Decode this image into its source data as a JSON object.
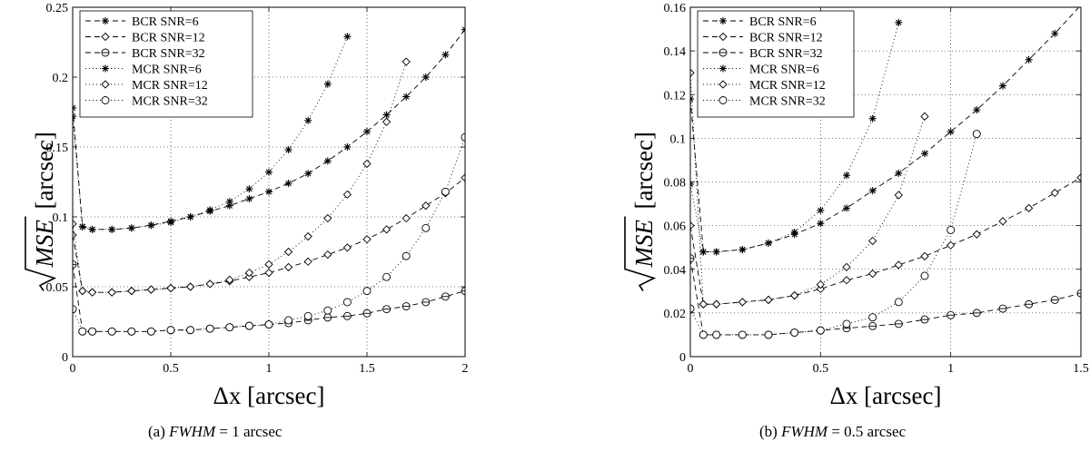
{
  "chart_data": [
    {
      "type": "line",
      "caption": {
        "label": "(a)",
        "var": "FWHM",
        "rest": "= 1 arcsec"
      },
      "xlabel": "Δx [arcsec]",
      "ylabel": "[arcsec]",
      "ylabel_var": "MSE",
      "xlim": [
        0,
        2
      ],
      "ylim": [
        0,
        0.25
      ],
      "xticks": [
        0,
        0.5,
        1,
        1.5,
        2
      ],
      "xtick_labels": [
        "0",
        "0.5",
        "1",
        "1.5",
        "2"
      ],
      "yticks": [
        0,
        0.05,
        0.1,
        0.15,
        0.2,
        0.25
      ],
      "ytick_labels": [
        "0",
        "0.05",
        "0.1",
        "0.15",
        "0.2",
        "0.25"
      ],
      "grid": true,
      "legend_position": "top-left",
      "series": [
        {
          "name": "BCR SNR=6",
          "line": "dashed",
          "marker": "star",
          "x": [
            0,
            0.05,
            0.1,
            0.2,
            0.3,
            0.4,
            0.5,
            0.6,
            0.7,
            0.8,
            0.9,
            1.0,
            1.1,
            1.2,
            1.3,
            1.4,
            1.5,
            1.6,
            1.7,
            1.8,
            1.9,
            2.0
          ],
          "y": [
            0.178,
            0.093,
            0.091,
            0.091,
            0.092,
            0.094,
            0.097,
            0.1,
            0.104,
            0.108,
            0.113,
            0.118,
            0.124,
            0.131,
            0.14,
            0.15,
            0.161,
            0.173,
            0.186,
            0.2,
            0.216,
            0.234
          ]
        },
        {
          "name": "BCR SNR=12",
          "line": "dashed",
          "marker": "diamond",
          "x": [
            0,
            0.05,
            0.1,
            0.2,
            0.3,
            0.4,
            0.5,
            0.6,
            0.7,
            0.8,
            0.9,
            1.0,
            1.1,
            1.2,
            1.3,
            1.4,
            1.5,
            1.6,
            1.7,
            1.8,
            1.9,
            2.0
          ],
          "y": [
            0.087,
            0.047,
            0.046,
            0.046,
            0.047,
            0.048,
            0.049,
            0.05,
            0.052,
            0.054,
            0.057,
            0.06,
            0.064,
            0.068,
            0.073,
            0.078,
            0.084,
            0.091,
            0.099,
            0.108,
            0.117,
            0.128
          ]
        },
        {
          "name": "BCR SNR=32",
          "line": "dashed",
          "marker": "circle-bar",
          "x": [
            0,
            0.05,
            0.1,
            0.2,
            0.3,
            0.4,
            0.5,
            0.6,
            0.7,
            0.8,
            0.9,
            1.0,
            1.1,
            1.2,
            1.3,
            1.4,
            1.5,
            1.6,
            1.7,
            1.8,
            1.9,
            2.0
          ],
          "y": [
            0.066,
            0.018,
            0.018,
            0.018,
            0.018,
            0.018,
            0.019,
            0.019,
            0.02,
            0.021,
            0.022,
            0.023,
            0.024,
            0.026,
            0.028,
            0.029,
            0.031,
            0.034,
            0.036,
            0.039,
            0.043,
            0.047
          ]
        },
        {
          "name": "MCR SNR=6",
          "line": "dotted",
          "marker": "star",
          "x": [
            0,
            0.05,
            0.1,
            0.2,
            0.3,
            0.4,
            0.5,
            0.6,
            0.7,
            0.8,
            0.9,
            1.0,
            1.1,
            1.2,
            1.3,
            1.4
          ],
          "y": [
            0.172,
            0.093,
            0.091,
            0.091,
            0.092,
            0.094,
            0.096,
            0.1,
            0.105,
            0.111,
            0.12,
            0.132,
            0.148,
            0.169,
            0.195,
            0.229
          ]
        },
        {
          "name": "MCR SNR=12",
          "line": "dotted",
          "marker": "diamond",
          "x": [
            0,
            0.05,
            0.1,
            0.2,
            0.3,
            0.4,
            0.5,
            0.6,
            0.7,
            0.8,
            0.9,
            1.0,
            1.1,
            1.2,
            1.3,
            1.4,
            1.5,
            1.6,
            1.7
          ],
          "y": [
            0.095,
            0.047,
            0.046,
            0.046,
            0.047,
            0.048,
            0.049,
            0.05,
            0.052,
            0.055,
            0.06,
            0.066,
            0.075,
            0.086,
            0.099,
            0.116,
            0.138,
            0.168,
            0.211
          ]
        },
        {
          "name": "MCR SNR=32",
          "line": "dotted",
          "marker": "circle",
          "x": [
            0,
            0.05,
            0.1,
            0.2,
            0.3,
            0.4,
            0.5,
            0.6,
            0.7,
            0.8,
            0.9,
            1.0,
            1.1,
            1.2,
            1.3,
            1.4,
            1.5,
            1.6,
            1.7,
            1.8,
            1.9,
            2.0
          ],
          "y": [
            0.034,
            0.018,
            0.018,
            0.018,
            0.018,
            0.018,
            0.019,
            0.019,
            0.02,
            0.021,
            0.022,
            0.023,
            0.026,
            0.029,
            0.033,
            0.039,
            0.047,
            0.057,
            0.072,
            0.092,
            0.118,
            0.157
          ]
        }
      ]
    },
    {
      "type": "line",
      "caption": {
        "label": "(b)",
        "var": "FWHM",
        "rest": "= 0.5 arcsec"
      },
      "xlabel": "Δx [arcsec]",
      "ylabel": "[arcsec]",
      "ylabel_var": "MSE",
      "xlim": [
        0,
        1.5
      ],
      "ylim": [
        0,
        0.16
      ],
      "xticks": [
        0,
        0.5,
        1,
        1.5
      ],
      "xtick_labels": [
        "0",
        "0.5",
        "1",
        "1.5"
      ],
      "yticks": [
        0,
        0.02,
        0.04,
        0.06,
        0.08,
        0.1,
        0.12,
        0.14,
        0.16
      ],
      "ytick_labels": [
        "0",
        "0.02",
        "0.04",
        "0.06",
        "0.08",
        "0.1",
        "0.12",
        "0.14",
        "0.16"
      ],
      "grid": true,
      "legend_position": "top-left",
      "series": [
        {
          "name": "BCR SNR=6",
          "line": "dashed",
          "marker": "star",
          "x": [
            0,
            0.05,
            0.1,
            0.2,
            0.3,
            0.4,
            0.5,
            0.6,
            0.7,
            0.8,
            0.9,
            1.0,
            1.1,
            1.2,
            1.3,
            1.4,
            1.5
          ],
          "y": [
            0.118,
            0.048,
            0.048,
            0.049,
            0.052,
            0.056,
            0.061,
            0.068,
            0.076,
            0.084,
            0.093,
            0.103,
            0.113,
            0.124,
            0.136,
            0.148,
            0.161
          ]
        },
        {
          "name": "BCR SNR=12",
          "line": "dashed",
          "marker": "diamond",
          "x": [
            0,
            0.05,
            0.1,
            0.2,
            0.3,
            0.4,
            0.5,
            0.6,
            0.7,
            0.8,
            0.9,
            1.0,
            1.1,
            1.2,
            1.3,
            1.4,
            1.5
          ],
          "y": [
            0.06,
            0.024,
            0.024,
            0.025,
            0.026,
            0.028,
            0.031,
            0.035,
            0.038,
            0.042,
            0.046,
            0.051,
            0.056,
            0.062,
            0.068,
            0.075,
            0.082
          ]
        },
        {
          "name": "BCR SNR=32",
          "line": "dashed",
          "marker": "circle-bar",
          "x": [
            0,
            0.05,
            0.1,
            0.2,
            0.3,
            0.4,
            0.5,
            0.6,
            0.7,
            0.8,
            0.9,
            1.0,
            1.1,
            1.2,
            1.3,
            1.4,
            1.5
          ],
          "y": [
            0.045,
            0.01,
            0.01,
            0.01,
            0.01,
            0.011,
            0.012,
            0.013,
            0.014,
            0.015,
            0.017,
            0.019,
            0.02,
            0.022,
            0.024,
            0.026,
            0.029
          ]
        },
        {
          "name": "MCR SNR=6",
          "line": "dotted",
          "marker": "star",
          "x": [
            0,
            0.05,
            0.1,
            0.2,
            0.3,
            0.4,
            0.5,
            0.6,
            0.7,
            0.8
          ],
          "y": [
            0.079,
            0.048,
            0.048,
            0.049,
            0.052,
            0.057,
            0.067,
            0.083,
            0.109,
            0.153
          ]
        },
        {
          "name": "MCR SNR=12",
          "line": "dotted",
          "marker": "diamond",
          "x": [
            0,
            0.05,
            0.1,
            0.2,
            0.3,
            0.4,
            0.5,
            0.6,
            0.7,
            0.8,
            0.9
          ],
          "y": [
            0.13,
            0.024,
            0.024,
            0.025,
            0.026,
            0.028,
            0.033,
            0.041,
            0.053,
            0.074,
            0.11
          ]
        },
        {
          "name": "MCR SNR=32",
          "line": "dotted",
          "marker": "circle",
          "x": [
            0,
            0.05,
            0.1,
            0.2,
            0.3,
            0.4,
            0.5,
            0.6,
            0.7,
            0.8,
            0.9,
            1.0,
            1.1
          ],
          "y": [
            0.022,
            0.01,
            0.01,
            0.01,
            0.01,
            0.011,
            0.012,
            0.015,
            0.018,
            0.025,
            0.037,
            0.058,
            0.102
          ]
        }
      ]
    }
  ]
}
